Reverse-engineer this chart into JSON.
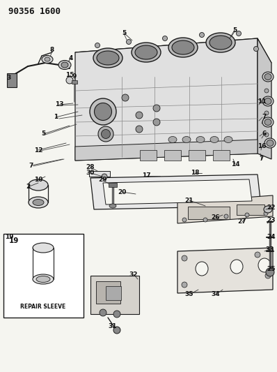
{
  "title": "90356 1600",
  "bg_color": "#f5f5f0",
  "line_color": "#1a1a1a",
  "text_color": "#111111",
  "repair_sleeve_label": "REPAIR SLEEVE",
  "figsize": [
    3.98,
    5.33
  ],
  "dpi": 100
}
